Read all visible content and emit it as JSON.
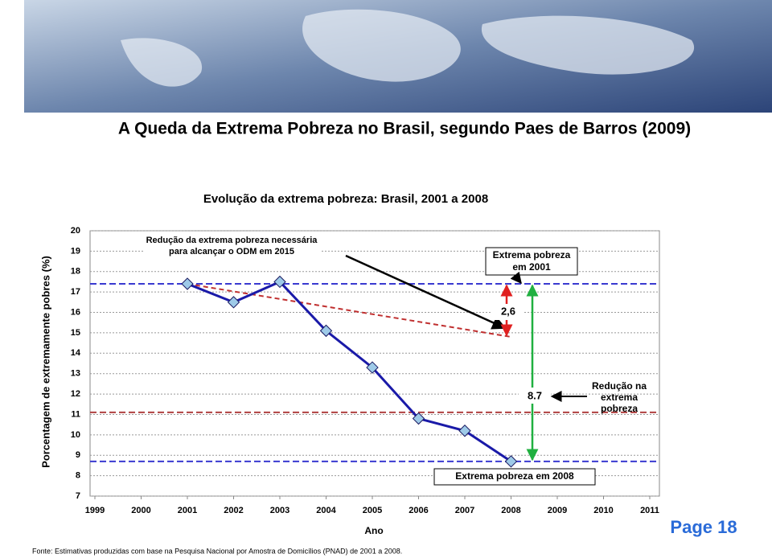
{
  "slide_title": "A Queda da Extrema Pobreza no Brasil, segundo Paes de Barros (2009)",
  "page_label": "Page 18",
  "source": "Fonte: Estimativas produzidas com base na Pesquisa Nacional por Amostra de Domicílios (PNAD) de 2001 a 2008.",
  "chart_data": {
    "type": "line",
    "title": "Evolução da extrema pobreza: Brasil, 2001 a 2008",
    "x_label": "Ano",
    "y_label": "Porcentagem de extremamente pobres (%)",
    "x": [
      2001,
      2002,
      2003,
      2004,
      2005,
      2006,
      2007,
      2008
    ],
    "series": [
      {
        "name": "Extrema pobreza",
        "color": "#1a1aa8",
        "values": [
          17.4,
          16.5,
          17.5,
          15.1,
          13.3,
          10.8,
          10.2,
          8.7
        ]
      }
    ],
    "xlim": [
      1999,
      2011
    ],
    "xticks": [
      1999,
      2000,
      2001,
      2002,
      2003,
      2004,
      2005,
      2006,
      2007,
      2008,
      2009,
      2010,
      2011
    ],
    "ylim": [
      7,
      20
    ],
    "yticks": [
      7,
      8,
      9,
      10,
      11,
      12,
      13,
      14,
      15,
      16,
      17,
      18,
      19,
      20
    ],
    "grid": true,
    "reference_lines": [
      {
        "value": 17.4,
        "color": "#3a3ad0"
      },
      {
        "value": 11.1,
        "color": "#b04040"
      },
      {
        "value": 8.7,
        "color": "#3a3ad0"
      }
    ],
    "trend_line": {
      "x": [
        2001,
        2008
      ],
      "values": [
        17.4,
        14.8
      ],
      "color": "#c03030"
    },
    "annotations": {
      "odm": "Redução da extrema pobreza necessária para alcançar o ODM em 2015",
      "gap": "2,6",
      "drop": "8.7",
      "start": "Extrema pobreza em 2001",
      "end": "Extrema pobreza em 2008",
      "reduction": "Redução na extrema pobreza"
    }
  }
}
